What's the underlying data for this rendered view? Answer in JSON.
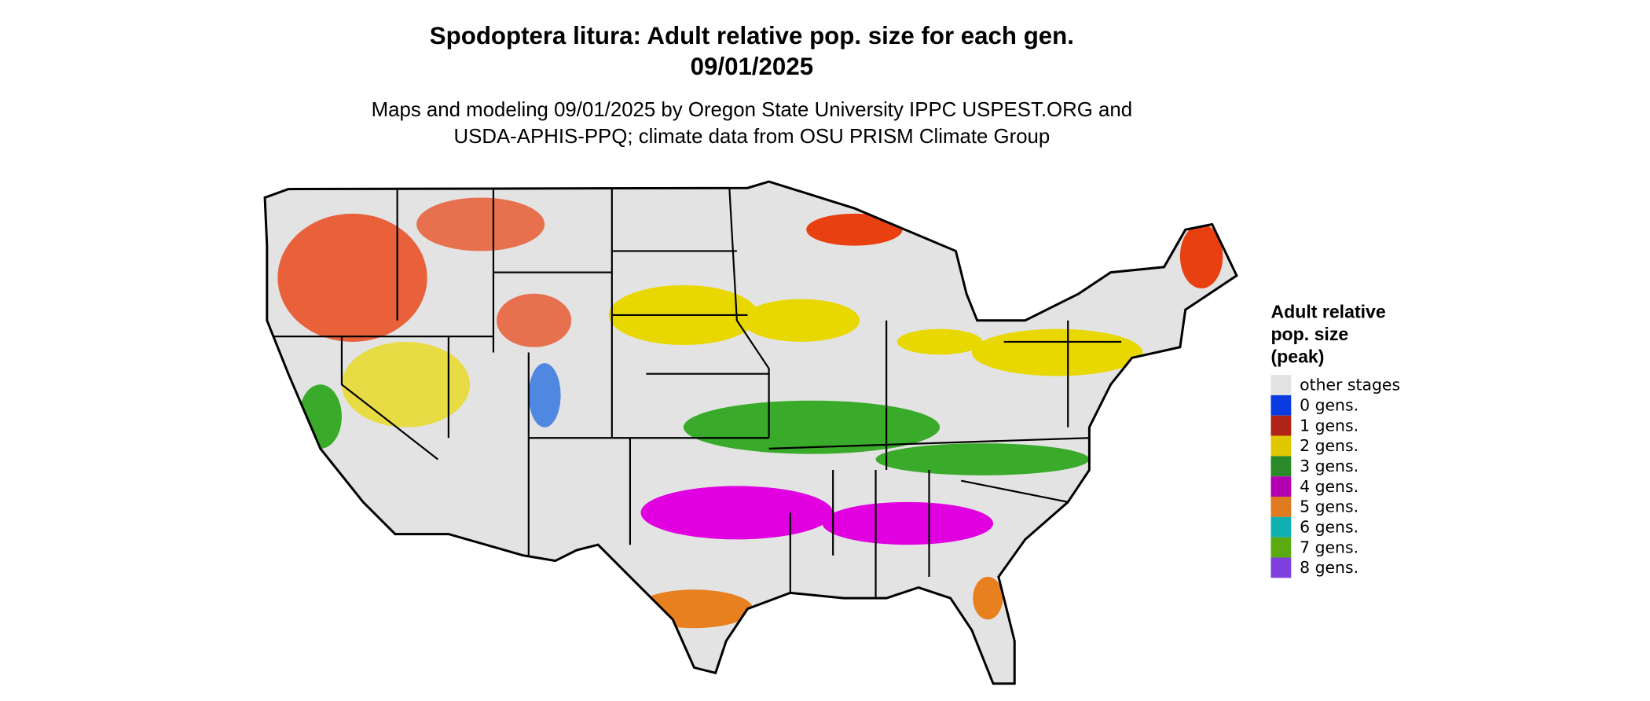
{
  "header": {
    "title": [
      "Spodoptera litura: Adult relative pop. size for each gen.",
      "09/01/2025"
    ],
    "subtitle": [
      "Maps and modeling 09/01/2025 by Oregon State University IPPC USPEST.ORG and",
      "USDA-APHIS-PPQ; climate data from OSU PRISM Climate Group"
    ]
  },
  "legend": {
    "title": [
      "Adult relative",
      "pop. size",
      "(peak)"
    ],
    "items": [
      {
        "label": "other stages",
        "color": "#e3e3e3"
      },
      {
        "label": "0 gens.",
        "color": "#0a3be0"
      },
      {
        "label": "1 gens.",
        "color": "#b02418"
      },
      {
        "label": "2 gens.",
        "color": "#e0c800"
      },
      {
        "label": "3 gens.",
        "color": "#2a8a2a"
      },
      {
        "label": "4 gens.",
        "color": "#b000b0"
      },
      {
        "label": "5 gens.",
        "color": "#e07a20"
      },
      {
        "label": "6 gens.",
        "color": "#10b0b0"
      },
      {
        "label": "7 gens.",
        "color": "#5aaa10"
      },
      {
        "label": "8 gens.",
        "color": "#8040e0"
      }
    ]
  }
}
